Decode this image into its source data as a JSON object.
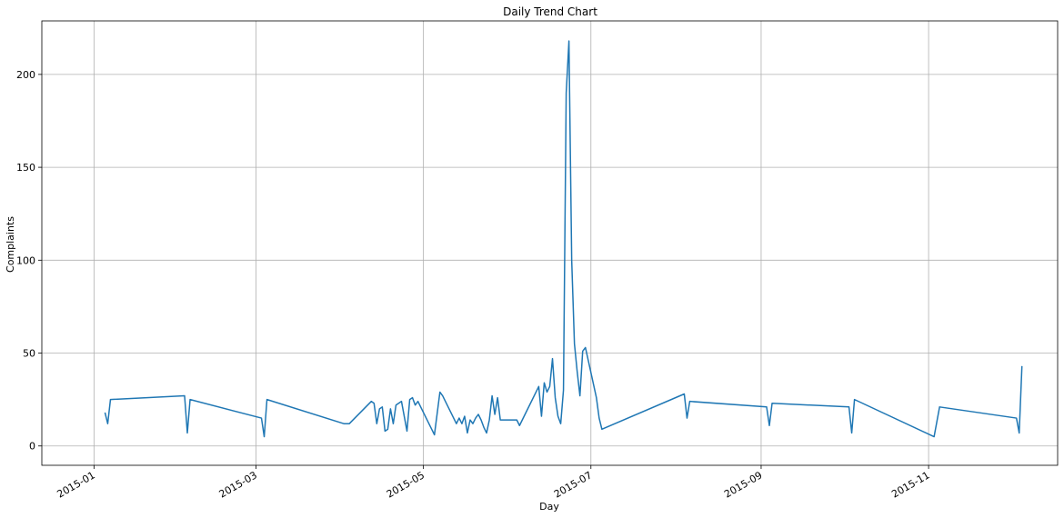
{
  "chart_data": {
    "type": "line",
    "title": "Daily Trend Chart",
    "xlabel": "Day",
    "ylabel": "Complaints",
    "x_axis_type": "date",
    "xlim": [
      "2014-12-13",
      "2015-12-18"
    ],
    "ylim": [
      -10.4,
      228.8
    ],
    "grid": true,
    "line_color": "#1f77b4",
    "x_ticks": [
      "2015-01",
      "2015-03",
      "2015-05",
      "2015-07",
      "2015-09",
      "2015-11"
    ],
    "y_ticks": [
      0,
      50,
      100,
      150,
      200
    ],
    "series": [
      {
        "x": [
          "2015-01-05",
          "2015-01-06",
          "2015-01-07",
          "2015-02-03",
          "2015-02-04",
          "2015-02-05",
          "2015-03-03",
          "2015-03-04",
          "2015-03-05",
          "2015-04-02",
          "2015-04-03",
          "2015-04-04",
          "2015-04-12",
          "2015-04-13",
          "2015-04-14",
          "2015-04-15",
          "2015-04-16",
          "2015-04-17",
          "2015-04-18",
          "2015-04-19",
          "2015-04-20",
          "2015-04-21",
          "2015-04-23",
          "2015-04-25",
          "2015-04-26",
          "2015-04-27",
          "2015-04-28",
          "2015-04-29",
          "2015-05-05",
          "2015-05-07",
          "2015-05-08",
          "2015-05-13",
          "2015-05-14",
          "2015-05-15",
          "2015-05-16",
          "2015-05-17",
          "2015-05-18",
          "2015-05-19",
          "2015-05-20",
          "2015-05-21",
          "2015-05-22",
          "2015-05-23",
          "2015-05-24",
          "2015-05-25",
          "2015-05-26",
          "2015-05-27",
          "2015-05-28",
          "2015-05-29",
          "2015-06-04",
          "2015-06-05",
          "2015-06-12",
          "2015-06-13",
          "2015-06-14",
          "2015-06-15",
          "2015-06-16",
          "2015-06-17",
          "2015-06-18",
          "2015-06-19",
          "2015-06-20",
          "2015-06-21",
          "2015-06-22",
          "2015-06-23",
          "2015-06-24",
          "2015-06-25",
          "2015-06-26",
          "2015-06-27",
          "2015-06-28",
          "2015-06-29",
          "2015-07-03",
          "2015-07-04",
          "2015-07-05",
          "2015-08-04",
          "2015-08-05",
          "2015-08-06",
          "2015-09-03",
          "2015-09-04",
          "2015-09-05",
          "2015-10-03",
          "2015-10-04",
          "2015-10-05",
          "2015-11-03",
          "2015-11-05",
          "2015-12-03",
          "2015-12-04",
          "2015-12-05"
        ],
        "values": [
          18,
          12,
          25,
          27,
          7,
          25,
          15,
          5,
          25,
          12,
          12,
          12,
          24,
          23,
          12,
          20,
          21,
          8,
          9,
          20,
          12,
          22,
          24,
          8,
          25,
          26,
          22,
          24,
          6,
          29,
          27,
          12,
          15,
          12,
          16,
          7,
          14,
          12,
          15,
          17,
          14,
          10,
          7,
          14,
          27,
          17,
          26,
          14,
          14,
          11,
          32,
          16,
          34,
          29,
          32,
          47,
          26,
          16,
          12,
          30,
          190,
          218,
          100,
          55,
          40,
          27,
          51,
          53,
          26,
          15,
          9,
          28,
          15,
          24,
          21,
          11,
          23,
          21,
          7,
          25,
          5,
          21,
          15,
          7,
          43
        ]
      }
    ]
  }
}
